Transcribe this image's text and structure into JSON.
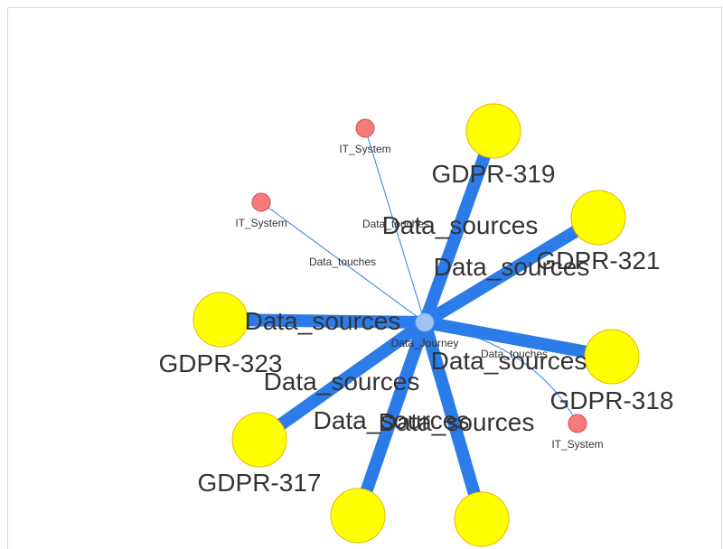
{
  "graph": {
    "hub": {
      "label": "Data_Journey"
    },
    "gdpr_nodes": [
      {
        "id": "n319",
        "label": "GDPR-319"
      },
      {
        "id": "n321",
        "label": "GDPR-321"
      },
      {
        "id": "n323",
        "label": "GDPR-323"
      },
      {
        "id": "n318",
        "label": "GDPR-318"
      },
      {
        "id": "n317",
        "label": "GDPR-317"
      },
      {
        "id": "nb1",
        "label": ""
      },
      {
        "id": "nb2",
        "label": ""
      }
    ],
    "it_nodes": [
      {
        "id": "it1",
        "label": "IT_System"
      },
      {
        "id": "it2",
        "label": "IT_System"
      },
      {
        "id": "it3",
        "label": "IT_System"
      }
    ],
    "thick_edge_label": "Data_sources",
    "thin_edge_label": "Data_touches"
  }
}
